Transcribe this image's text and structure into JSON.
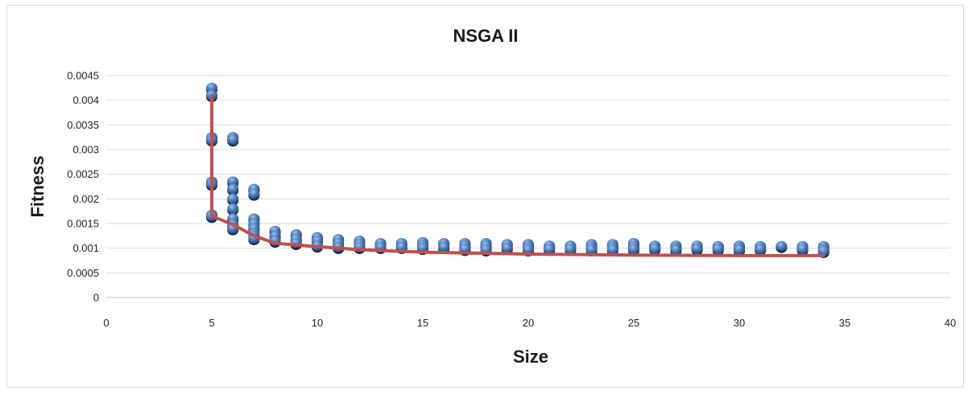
{
  "chart_data": {
    "type": "scatter",
    "title": "NSGA II",
    "xlabel": "Size",
    "ylabel": "Fitness",
    "xlim": [
      0,
      40
    ],
    "ylim": [
      0,
      0.0045
    ],
    "x_ticks": [
      "0",
      "5",
      "10",
      "15",
      "20",
      "25",
      "30",
      "35",
      "40"
    ],
    "y_ticks": [
      "0",
      "0.0005",
      "0.001",
      "0.0015",
      "0.002",
      "0.0025",
      "0.003",
      "0.0035",
      "0.004",
      "0.0045"
    ],
    "grid": "horizontal",
    "legend": "none",
    "colors": {
      "points": "#3f6fa8",
      "point_highlight": "#8fb3e0",
      "line": "#c0504d"
    },
    "series": [
      {
        "kind": "scatter",
        "x": [
          5,
          5,
          5,
          5,
          5,
          5,
          5,
          5,
          6,
          6,
          6,
          6,
          6,
          6,
          6,
          6,
          6,
          7,
          7,
          7,
          7,
          7,
          7,
          7,
          7,
          8,
          8,
          8,
          9,
          9,
          9,
          10,
          10,
          10,
          11,
          11,
          11,
          12,
          12,
          12,
          13,
          13,
          14,
          14,
          15,
          15,
          15,
          16,
          16,
          17,
          17,
          17,
          18,
          18,
          18,
          19,
          19,
          20,
          20,
          20,
          21,
          21,
          22,
          22,
          23,
          23,
          23,
          24,
          24,
          24,
          25,
          25,
          25,
          26,
          26,
          27,
          27,
          27,
          28,
          28,
          29,
          29,
          30,
          30,
          30,
          31,
          31,
          32,
          33,
          33,
          34,
          34,
          34
        ],
        "y": [
          0.00425,
          0.0041,
          0.00325,
          0.0032,
          0.00235,
          0.0023,
          0.00168,
          0.00165,
          0.00325,
          0.0032,
          0.00235,
          0.0022,
          0.002,
          0.0018,
          0.0016,
          0.00148,
          0.0014,
          0.0022,
          0.0021,
          0.0016,
          0.0015,
          0.0014,
          0.0013,
          0.00125,
          0.0012,
          0.00135,
          0.00125,
          0.00115,
          0.00128,
          0.00118,
          0.0011,
          0.00122,
          0.00115,
          0.00105,
          0.00118,
          0.0011,
          0.00102,
          0.00115,
          0.00108,
          0.00102,
          0.0011,
          0.00102,
          0.0011,
          0.00102,
          0.00112,
          0.00106,
          0.001,
          0.0011,
          0.00102,
          0.0011,
          0.00105,
          0.00098,
          0.0011,
          0.00105,
          0.00097,
          0.00108,
          0.001,
          0.00108,
          0.00102,
          0.00097,
          0.00105,
          0.00098,
          0.00105,
          0.00098,
          0.00108,
          0.00102,
          0.00097,
          0.00108,
          0.00102,
          0.00097,
          0.0011,
          0.00104,
          0.00098,
          0.00105,
          0.00099,
          0.00105,
          0.001,
          0.00097,
          0.00105,
          0.00099,
          0.00104,
          0.00098,
          0.00105,
          0.001,
          0.00097,
          0.00104,
          0.00098,
          0.00104,
          0.00104,
          0.00098,
          0.00104,
          0.00098,
          0.00094
        ]
      },
      {
        "kind": "line",
        "x": [
          5,
          5,
          6,
          7,
          8,
          10,
          12,
          15,
          20,
          25,
          30,
          34
        ],
        "y": [
          0.0041,
          0.00165,
          0.00148,
          0.00125,
          0.0011,
          0.00103,
          0.00097,
          0.00092,
          0.00088,
          0.00086,
          0.00085,
          0.00085
        ]
      }
    ]
  }
}
